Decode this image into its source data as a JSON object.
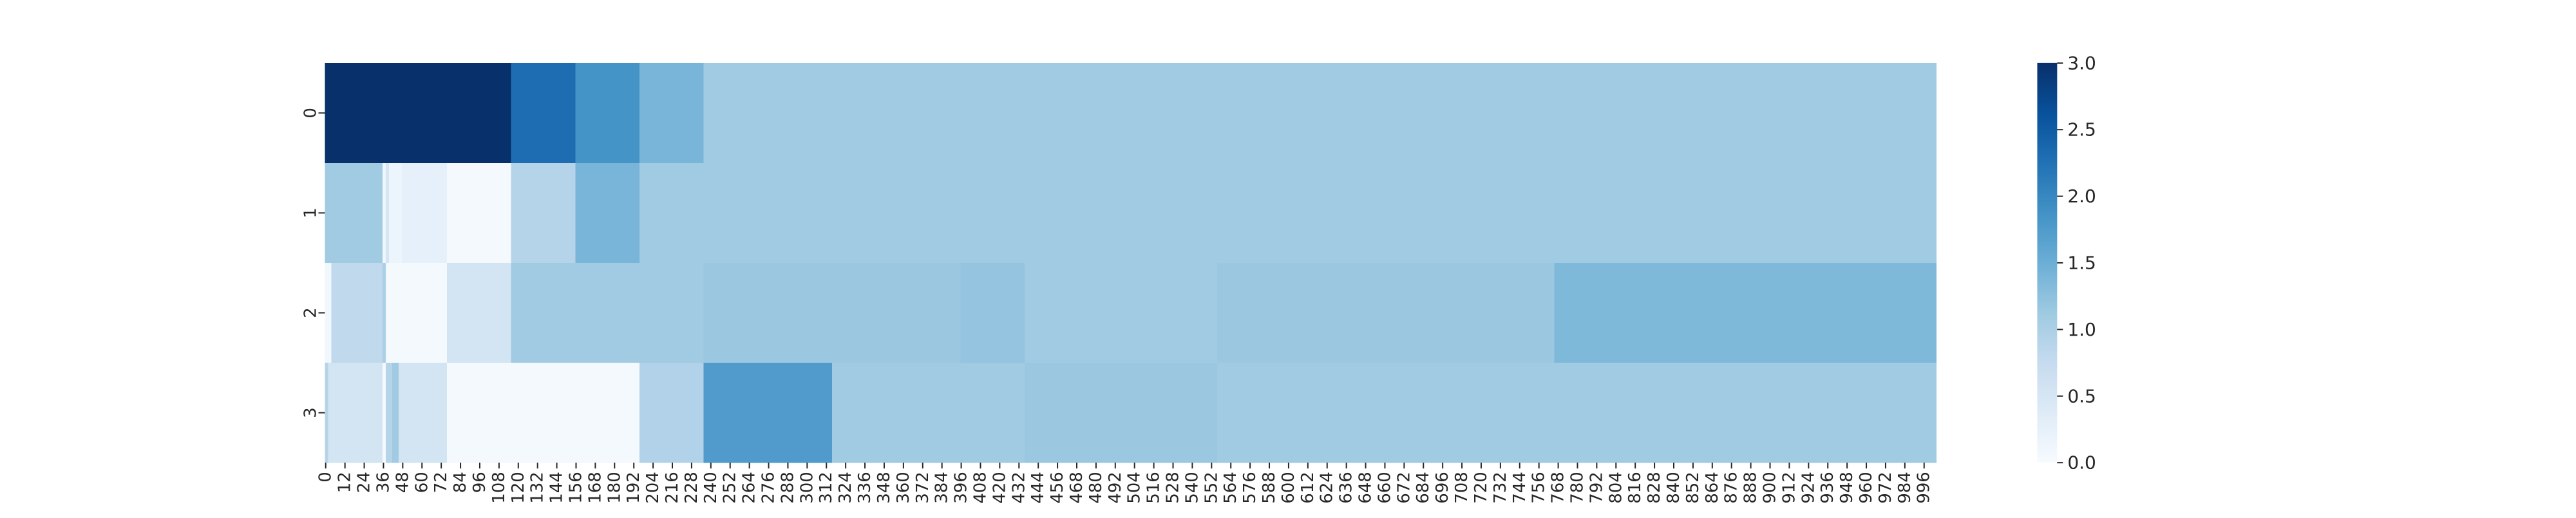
{
  "chart_data": {
    "type": "heatmap",
    "title": "",
    "xlabel": "",
    "ylabel": "",
    "x_tick_step": 12,
    "x_tick_max": 996,
    "row_labels": [
      "0",
      "1",
      "2",
      "3"
    ],
    "colormap": "Blues",
    "colormap_stops": [
      "#f7fbff",
      "#deebf7",
      "#c6dbef",
      "#9ecae1",
      "#6baed6",
      "#4292c6",
      "#2171b5",
      "#08519c",
      "#08306b"
    ],
    "value_range": [
      0.0,
      3.0
    ],
    "colorbar_ticks": [
      "0.0",
      "0.5",
      "1.0",
      "1.5",
      "2.0",
      "2.5",
      "3.0"
    ],
    "grid": false,
    "legend": "colorbar-right",
    "segments_note": "each row listed as [start_column, end_column, value]; columns 0-1004",
    "rows": [
      {
        "label": "0",
        "segments": [
          [
            0,
            116,
            3.0
          ],
          [
            116,
            156,
            2.3
          ],
          [
            156,
            196,
            1.85
          ],
          [
            196,
            236,
            1.4
          ],
          [
            236,
            1004,
            1.1
          ]
        ]
      },
      {
        "label": "1",
        "segments": [
          [
            0,
            36,
            1.1
          ],
          [
            36,
            38,
            0.12
          ],
          [
            38,
            40,
            0.5
          ],
          [
            40,
            48,
            0.15
          ],
          [
            48,
            76,
            0.25
          ],
          [
            76,
            116,
            0.05
          ],
          [
            116,
            156,
            0.9
          ],
          [
            156,
            196,
            1.4
          ],
          [
            196,
            1004,
            1.1
          ]
        ]
      },
      {
        "label": "2",
        "segments": [
          [
            0,
            4,
            0.1
          ],
          [
            4,
            36,
            0.8
          ],
          [
            36,
            38,
            1.0
          ],
          [
            38,
            76,
            0.05
          ],
          [
            76,
            116,
            0.55
          ],
          [
            116,
            236,
            1.1
          ],
          [
            236,
            396,
            1.15
          ],
          [
            396,
            436,
            1.2
          ],
          [
            436,
            556,
            1.1
          ],
          [
            556,
            766,
            1.15
          ],
          [
            766,
            1004,
            1.35
          ]
        ]
      },
      {
        "label": "3",
        "segments": [
          [
            0,
            2,
            0.9
          ],
          [
            2,
            36,
            0.55
          ],
          [
            36,
            38,
            0.05
          ],
          [
            38,
            42,
            0.9
          ],
          [
            42,
            46,
            1.1
          ],
          [
            46,
            76,
            0.55
          ],
          [
            76,
            196,
            0.05
          ],
          [
            196,
            236,
            0.95
          ],
          [
            236,
            316,
            1.75
          ],
          [
            316,
            436,
            1.1
          ],
          [
            436,
            556,
            1.15
          ],
          [
            556,
            1004,
            1.1
          ]
        ]
      }
    ]
  }
}
